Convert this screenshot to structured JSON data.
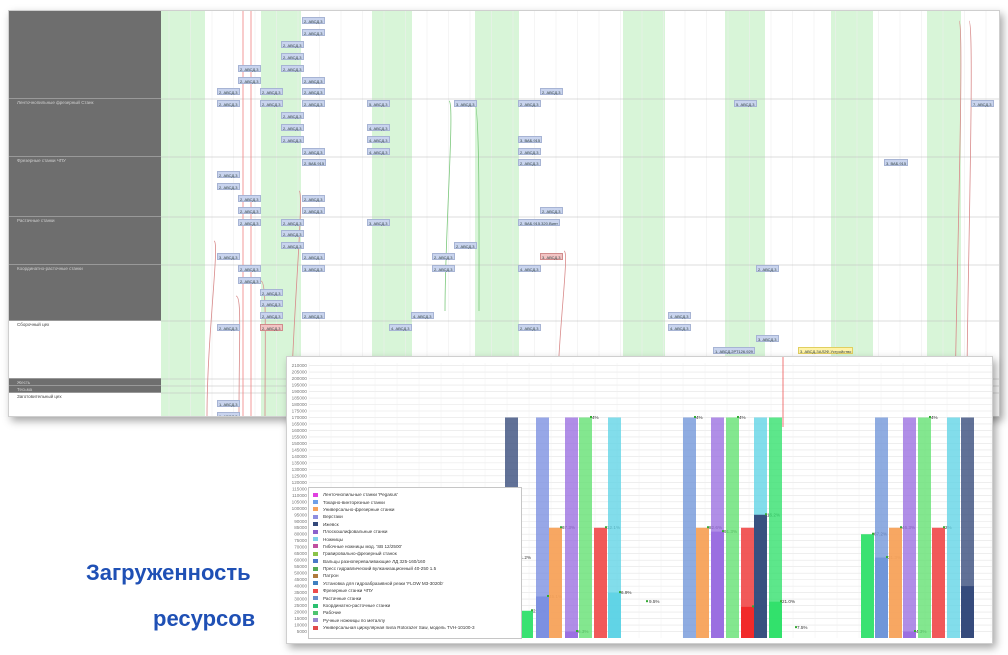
{
  "gantt": {
    "rows": [
      {
        "label": "",
        "h": 88,
        "dark": true
      },
      {
        "label": "Ленточнопильные фрезерный Станк",
        "h": 58,
        "dark": true
      },
      {
        "label": "Фрезерные станки ЧПУ",
        "h": 60,
        "dark": true
      },
      {
        "label": "Растачные станки",
        "h": 48,
        "dark": true
      },
      {
        "label": "Координатно-расточные станки",
        "h": 56,
        "dark": true
      },
      {
        "label": "Сборочный цех",
        "h": 58,
        "dark": false
      },
      {
        "label": "Жесть",
        "h": 7,
        "dark": true
      },
      {
        "label": "Тесьма",
        "h": 7,
        "dark": true
      },
      {
        "label": "Заготовительный цех",
        "h": 25,
        "dark": false
      }
    ],
    "tasks": [
      {
        "label": "2. АВСД.3",
        "red": false,
        "yel": false
      },
      {
        "label": "2. АВСД.3",
        "red": false,
        "yel": false
      },
      {
        "label": "2. АВСД.3",
        "red": false,
        "yel": false
      },
      {
        "label": "2. АВСД.3",
        "red": false,
        "yel": false
      },
      {
        "label": "2. АВСД.3",
        "red": false,
        "yel": false
      },
      {
        "label": "2. АВСД.3",
        "red": false,
        "yel": false
      },
      {
        "label": "2. АВСД.3",
        "red": false,
        "yel": false
      },
      {
        "label": "2. АВСД.3",
        "red": false,
        "yel": false
      },
      {
        "label": "2. АВСД.3",
        "red": false,
        "yel": false
      },
      {
        "label": "2. АВСД.3",
        "red": false,
        "yel": false
      },
      {
        "label": "2. АВСД.3",
        "red": false,
        "yel": false
      },
      {
        "label": "2. АВСД.3",
        "red": false,
        "yel": false
      },
      {
        "label": "2. АВСД.3",
        "red": false,
        "yel": false
      },
      {
        "label": "2. АВСД.3",
        "red": false,
        "yel": false
      },
      {
        "label": "5. АВСД.3",
        "red": false,
        "yel": false
      },
      {
        "label": "3. АВСД.3",
        "red": false,
        "yel": false
      },
      {
        "label": "2. АВСД.3",
        "red": false,
        "yel": false
      },
      {
        "label": "5. АВСД.3",
        "red": false,
        "yel": false
      },
      {
        "label": "7. АВСД.3",
        "red": false,
        "yel": false
      },
      {
        "label": "2. АВСД.3",
        "red": false,
        "yel": false
      },
      {
        "label": "2. АВСД.3",
        "red": false,
        "yel": false
      },
      {
        "label": "4. АВСД.3",
        "red": false,
        "yel": false
      },
      {
        "label": "2. АВСД.3",
        "red": false,
        "yel": false
      },
      {
        "label": "4. АВСД.3",
        "red": false,
        "yel": false
      },
      {
        "label": "3. ВАБ.915",
        "red": false,
        "yel": false
      },
      {
        "label": "2. АВСД.3",
        "red": false,
        "yel": false
      },
      {
        "label": "2. АВСД.3",
        "red": false,
        "yel": false
      },
      {
        "label": "4. АВСД.3",
        "red": false,
        "yel": false
      },
      {
        "label": "2. АВСД.3",
        "red": false,
        "yel": false
      },
      {
        "label": "2. ВАБ.915",
        "red": false,
        "yel": false
      },
      {
        "label": "2. АВСД.3",
        "red": false,
        "yel": false
      },
      {
        "label": "3. ВАБ.915",
        "red": false,
        "yel": false
      },
      {
        "label": "2. АВСД.3",
        "red": false,
        "yel": false
      },
      {
        "label": "2. АВСД.3",
        "red": false,
        "yel": false
      },
      {
        "label": "2. АВСД.3",
        "red": false,
        "yel": false
      },
      {
        "label": "2. АВСД.3",
        "red": false,
        "yel": false
      },
      {
        "label": "2. АВСД.3",
        "red": false,
        "yel": false
      },
      {
        "label": "2. АВСД.3",
        "red": false,
        "yel": false
      },
      {
        "label": "2. АВСД.3",
        "red": false,
        "yel": false
      },
      {
        "label": "2. АВСД.3",
        "red": false,
        "yel": false
      },
      {
        "label": "2. АВСД.3",
        "red": false,
        "yel": false
      },
      {
        "label": "3. АВСД.3",
        "red": false,
        "yel": false
      },
      {
        "label": "2. ВАБ.915.320.Винт",
        "red": false,
        "yel": false
      },
      {
        "label": "2. АВСД.3",
        "red": false,
        "yel": false
      },
      {
        "label": "2. АВСД.3",
        "red": false,
        "yel": false
      },
      {
        "label": "2. АВСД.3",
        "red": false,
        "yel": false
      },
      {
        "label": "3. АВСД.3",
        "red": false,
        "yel": false
      },
      {
        "label": "2. АВСД.3",
        "red": false,
        "yel": false
      },
      {
        "label": "3. АВСД.3",
        "red": true,
        "yel": false
      },
      {
        "label": "2. АВСД.3",
        "red": false,
        "yel": false
      },
      {
        "label": "2. АВСД.3",
        "red": false,
        "yel": false
      },
      {
        "label": "3. АВСД.3",
        "red": false,
        "yel": false
      },
      {
        "label": "2. АВСД.3",
        "red": false,
        "yel": false
      },
      {
        "label": "4. АВСД.3",
        "red": false,
        "yel": false
      },
      {
        "label": "2. АВСД.3",
        "red": false,
        "yel": false
      },
      {
        "label": "2. АВСД.3",
        "red": false,
        "yel": false
      },
      {
        "label": "2. АВСД.3",
        "red": false,
        "yel": false
      },
      {
        "label": "2. АВСД.3",
        "red": false,
        "yel": false
      },
      {
        "label": "2. АВСД.3",
        "red": false,
        "yel": false
      },
      {
        "label": "2. АВСД.3",
        "red": false,
        "yel": false
      },
      {
        "label": "4. АВСД.3",
        "red": false,
        "yel": false
      },
      {
        "label": "4. АВСД.3",
        "red": false,
        "yel": false
      },
      {
        "label": "2. АВСД.3",
        "red": false,
        "yel": false
      },
      {
        "label": "2. АВСД.3",
        "red": true,
        "yel": false
      },
      {
        "label": "4. АВСД.3",
        "red": false,
        "yel": false
      },
      {
        "label": "2. АВСД.3",
        "red": false,
        "yel": false
      },
      {
        "label": "4. АВСД.3",
        "red": false,
        "yel": false
      },
      {
        "label": "3. АВСД.3",
        "red": false,
        "yel": false
      },
      {
        "label": "1. АВСД.2РТ126.929",
        "red": false,
        "yel": false
      },
      {
        "label": "3. АВСД.ЗАЛ2Ф.Устройство",
        "red": false,
        "yel": true
      },
      {
        "label": "1. АВСД.2РТ28.412",
        "red": false,
        "yel": false
      },
      {
        "label": "3. АВСД.2РТ126.929",
        "red": false,
        "yel": false
      },
      {
        "label": "6. АВСД.3",
        "red": false,
        "yel": false
      },
      {
        "label": "1. АВСД.3",
        "red": false,
        "yel": false
      },
      {
        "label": "1. АВСД.3",
        "red": false,
        "yel": false
      }
    ]
  },
  "chart": {
    "y_ticks": [
      "210000",
      "205000",
      "200000",
      "195000",
      "190000",
      "185000",
      "180000",
      "175000",
      "170000",
      "165000",
      "160000",
      "155000",
      "150000",
      "145000",
      "140000",
      "135000",
      "130000",
      "125000",
      "120000",
      "115000",
      "110000",
      "105000",
      "100000",
      "95000",
      "90000",
      "85000",
      "80000",
      "75000",
      "70000",
      "65000",
      "60000",
      "55000",
      "50000",
      "45000",
      "40000",
      "35000",
      "30000",
      "25000",
      "20000",
      "15000",
      "10000",
      "5000"
    ],
    "legend": [
      {
        "label": "Ленточнопильные станки 'Pegasus'",
        "color": "#e040e0"
      },
      {
        "label": "Токарно-винторезные станки",
        "color": "#6fa0e8"
      },
      {
        "label": "Универсально-фрезерные станки",
        "color": "#f7a25a"
      },
      {
        "label": "Верстаки",
        "color": "#8e8ee0"
      },
      {
        "label": "Ижевск",
        "color": "#34497a"
      },
      {
        "label": "Плоскошлифовальные станки",
        "color": "#8b62cc"
      },
      {
        "label": "Ножницы",
        "color": "#7fd1e8"
      },
      {
        "label": "Гибочные ножницы мод. 'SB 12/2500'",
        "color": "#c050a0"
      },
      {
        "label": "Гравировально-фрезерный станок",
        "color": "#8ac34a"
      },
      {
        "label": "Вальцы разнопереваливающие ЛД 325-160/160",
        "color": "#4a78c8"
      },
      {
        "label": "Пресс гидравлический вулканизационный 40-250 1.5",
        "color": "#55aa55"
      },
      {
        "label": "Патрон",
        "color": "#b07a3c"
      },
      {
        "label": "Установка для гидроабразивной резки 'FLOW M3-3020b'",
        "color": "#3f7fbf"
      },
      {
        "label": "Фрезерные станки ЧПУ",
        "color": "#ee4b4b"
      },
      {
        "label": "Растачные станки",
        "color": "#6b8ec9"
      },
      {
        "label": "Координатно-расточные станки",
        "color": "#2ac070"
      },
      {
        "label": "Рабочие",
        "color": "#4fc46f"
      },
      {
        "label": "Ручные ножницы по металлу",
        "color": "#9a8ad0"
      },
      {
        "label": "Универсальная циркулярная пила Rotorazer Saw, модель TVH-10100-3",
        "color": "#e04a4a"
      }
    ],
    "groups": [
      {
        "bars": [
          {
            "color": "#34497a",
            "value": 170000,
            "label": "",
            "fill": 1.0
          },
          {
            "color": "#34497a",
            "value": 62000,
            "label": "31.2%",
            "fill": 1.0
          },
          {
            "color": "#2fe06a",
            "value": 21000,
            "label": "21.2%",
            "fill": 1.0
          },
          {
            "color": "#7a8ee0",
            "value": 170000,
            "label": "",
            "fill": 1.0
          },
          {
            "color": "#7a8ee0",
            "value": 32000,
            "label": "45.1%",
            "fill": 1.0
          },
          {
            "color": "#f7a25a",
            "value": 85000,
            "label": "67.3%",
            "fill": 1.0
          },
          {
            "color": "#9a6ee0",
            "value": 170000,
            "label": "",
            "fill": 1.0
          },
          {
            "color": "#9a6ee0",
            "value": 5000,
            "label": "6.3%",
            "fill": 1.0
          },
          {
            "color": "#60e070",
            "value": 170000,
            "label": "4%",
            "fill": 1.0
          },
          {
            "color": "#f05050",
            "value": 85000,
            "label": "12.1%",
            "fill": 1.0
          },
          {
            "color": "#5fd3e6",
            "value": 170000,
            "label": "",
            "fill": 1.0
          },
          {
            "color": "#5fd3e6",
            "value": 35000,
            "label": "6.9%",
            "fill": 1.0
          }
        ]
      },
      {
        "bars": [
          {
            "color": "#6f95d8",
            "value": 170000,
            "label": "4%",
            "fill": 1.0
          },
          {
            "color": "#f7a25a",
            "value": 85000,
            "label": "82.6%",
            "fill": 1.0
          },
          {
            "color": "#9a6ee0",
            "value": 170000,
            "label": "",
            "fill": 1.0
          },
          {
            "color": "#9a6ee0",
            "value": 82000,
            "label": "91.3%",
            "fill": 1.0
          },
          {
            "color": "#60e070",
            "value": 170000,
            "label": "4%",
            "fill": 1.0
          },
          {
            "color": "#f05050",
            "value": 85000,
            "label": "",
            "fill": 1.0
          },
          {
            "color": "#f02828",
            "value": 24000,
            "label": "81.3%",
            "fill": 1.0
          },
          {
            "color": "#5fd3e6",
            "value": 170000,
            "label": "",
            "fill": 1.0
          },
          {
            "color": "#34497a",
            "value": 95000,
            "label": "16.2%",
            "fill": 1.0
          },
          {
            "color": "#2fe06a",
            "value": 170000,
            "label": "",
            "fill": 1.0
          },
          {
            "color": "#2fe06a",
            "value": 28000,
            "label": "21.0%",
            "fill": 1.0
          },
          {
            "color": "#2fe06a",
            "value": 0,
            "label": "7.5%",
            "fill": 1.0
          }
        ]
      },
      {
        "bars": [
          {
            "color": "#2fe06a",
            "value": 80000,
            "label": "67.2%",
            "fill": 1.0
          },
          {
            "color": "#6f95d8",
            "value": 170000,
            "label": "",
            "fill": 1.0
          },
          {
            "color": "#6f95d8",
            "value": 62000,
            "label": "31.3%",
            "fill": 1.0
          },
          {
            "color": "#f7a25a",
            "value": 85000,
            "label": "46.3%",
            "fill": 1.0
          },
          {
            "color": "#9a6ee0",
            "value": 170000,
            "label": "",
            "fill": 1.0
          },
          {
            "color": "#9a6ee0",
            "value": 5000,
            "label": "4.3%",
            "fill": 1.0
          },
          {
            "color": "#60e070",
            "value": 170000,
            "label": "4%",
            "fill": 1.0
          },
          {
            "color": "#f05050",
            "value": 85000,
            "label": "2%",
            "fill": 1.0
          },
          {
            "color": "#5fd3e6",
            "value": 170000,
            "label": "",
            "fill": 1.0
          },
          {
            "color": "#34497a",
            "value": 170000,
            "label": "",
            "fill": 1.0
          },
          {
            "color": "#34497a",
            "value": 40000,
            "label": "",
            "fill": 1.0
          }
        ]
      }
    ],
    "extra_label": "9.5%"
  },
  "caption": {
    "line1": "Загруженность",
    "line2": "ресурсов"
  }
}
